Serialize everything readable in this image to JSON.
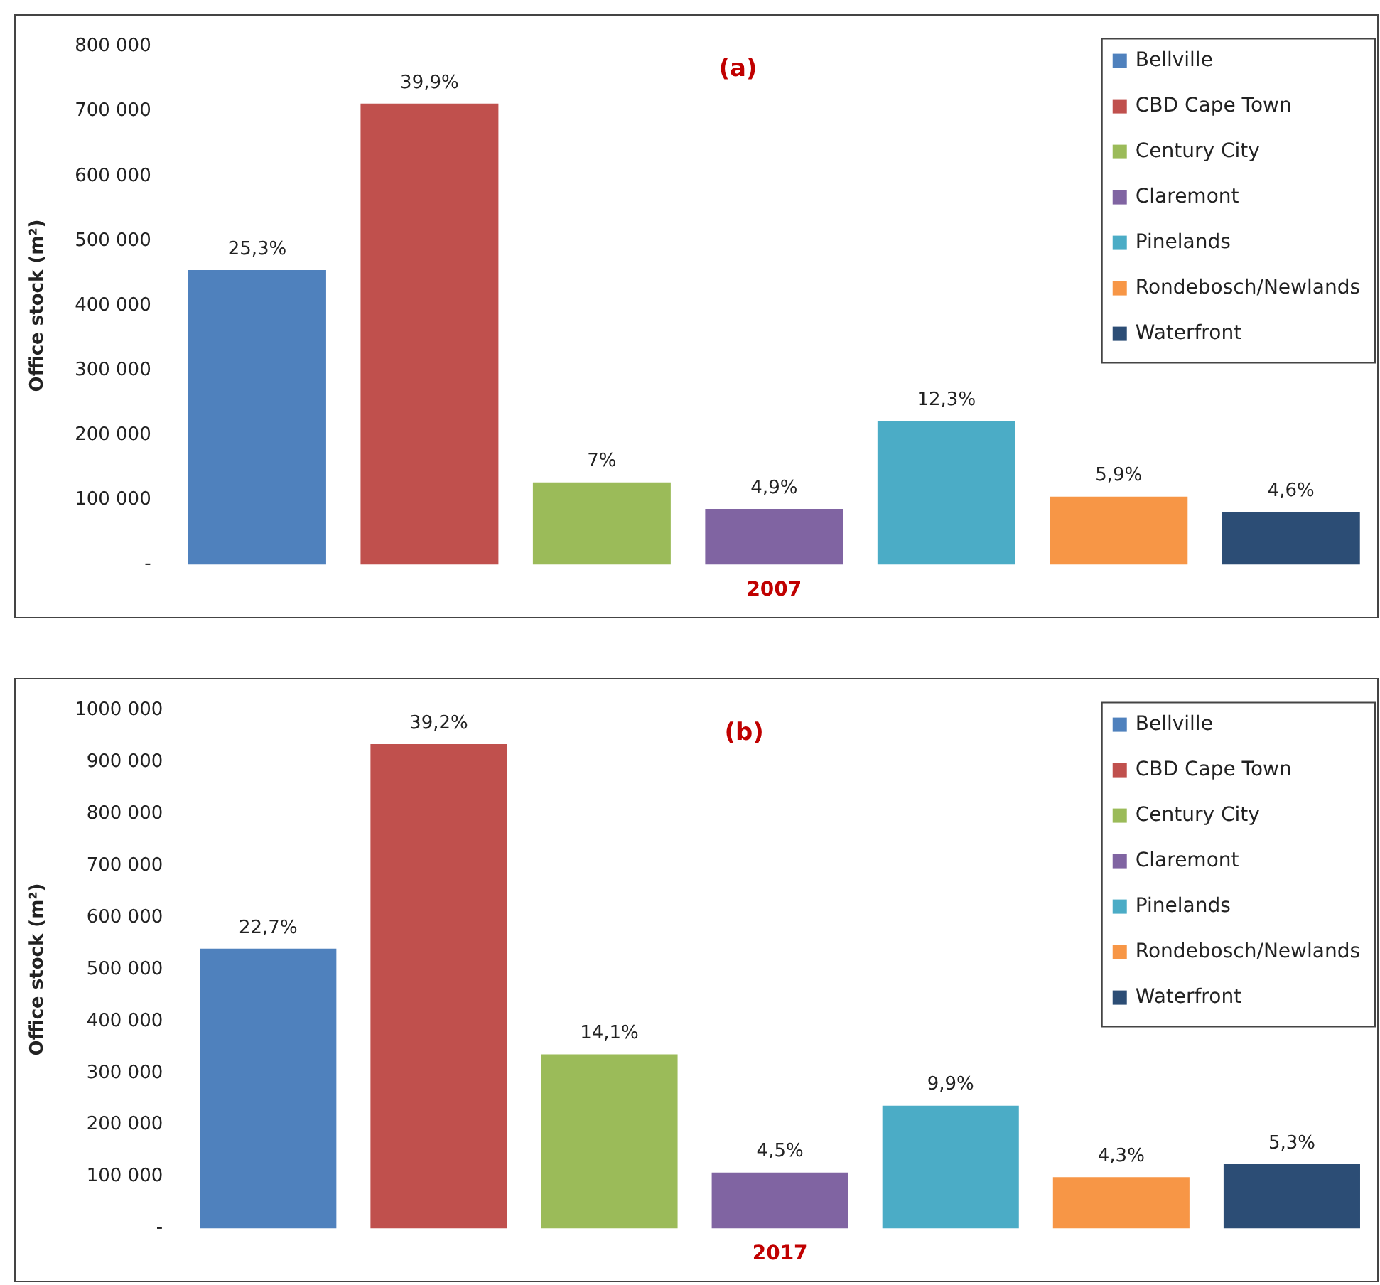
{
  "chart_data": [
    {
      "type": "bar",
      "title": "(a)",
      "ylabel": "Office stock (m²)",
      "xlabel": "2007",
      "categories": [
        null
      ],
      "legend": "top right",
      "grid": false,
      "ylim": [
        0,
        800000
      ],
      "yticks": [
        {
          "value": 0,
          "label": "-"
        },
        {
          "value": 100000,
          "label": "100 000"
        },
        {
          "value": 200000,
          "label": "200 000"
        },
        {
          "value": 300000,
          "label": "300 000"
        },
        {
          "value": 400000,
          "label": "400 000"
        },
        {
          "value": 500000,
          "label": "500 000"
        },
        {
          "value": 600000,
          "label": "600 000"
        },
        {
          "value": 700000,
          "label": "700 000"
        },
        {
          "value": 800000,
          "label": "800 000"
        }
      ],
      "series": [
        {
          "name": "Bellville",
          "color": "#4f81bd",
          "values": [
            455000
          ]
        },
        {
          "name": "CBD Cape Town",
          "color": "#c0504d",
          "values": [
            712000
          ]
        },
        {
          "name": "Century City",
          "color": "#9bbb59",
          "values": [
            127000
          ]
        },
        {
          "name": "Claremont",
          "color": "#8064a2",
          "values": [
            86000
          ]
        },
        {
          "name": "Pinelands",
          "color": "#4bacc6",
          "values": [
            222000
          ]
        },
        {
          "name": "Rondebosch/Newlands",
          "color": "#f79646",
          "values": [
            105000
          ]
        },
        {
          "name": "Waterfront",
          "color": "#2c4d75",
          "values": [
            81000
          ]
        }
      ],
      "annotations": [
        {
          "text": "25,3%",
          "y": 455000
        },
        {
          "text": "39,9%",
          "y": 712000
        },
        {
          "text": "7%",
          "y": 127000
        },
        {
          "text": "4,9%",
          "y": 86000
        },
        {
          "text": "12,3%",
          "y": 222000
        },
        {
          "text": "5,9%",
          "y": 105000
        },
        {
          "text": "4,6%",
          "y": 81000
        }
      ]
    },
    {
      "type": "bar",
      "title": "(b)",
      "ylabel": "Office stock (m²)",
      "xlabel": "2017",
      "categories": [
        null
      ],
      "legend": "top right",
      "grid": false,
      "ylim": [
        0,
        1000000
      ],
      "yticks": [
        {
          "value": 0,
          "label": "-"
        },
        {
          "value": 100000,
          "label": "100 000"
        },
        {
          "value": 200000,
          "label": "200 000"
        },
        {
          "value": 300000,
          "label": "300 000"
        },
        {
          "value": 400000,
          "label": "400 000"
        },
        {
          "value": 500000,
          "label": "500 000"
        },
        {
          "value": 600000,
          "label": "600 000"
        },
        {
          "value": 700000,
          "label": "700 000"
        },
        {
          "value": 800000,
          "label": "800 000"
        },
        {
          "value": 900000,
          "label": "900 000"
        },
        {
          "value": 1000000,
          "label": "1000 000"
        }
      ],
      "series": [
        {
          "name": "Bellville",
          "color": "#4f81bd",
          "values": [
            540000
          ]
        },
        {
          "name": "CBD Cape Town",
          "color": "#c0504d",
          "values": [
            935000
          ]
        },
        {
          "name": "Century City",
          "color": "#9bbb59",
          "values": [
            336000
          ]
        },
        {
          "name": "Claremont",
          "color": "#8064a2",
          "values": [
            108000
          ]
        },
        {
          "name": "Pinelands",
          "color": "#4bacc6",
          "values": [
            237000
          ]
        },
        {
          "name": "Rondebosch/Newlands",
          "color": "#f79646",
          "values": [
            99000
          ]
        },
        {
          "name": "Waterfront",
          "color": "#2c4d75",
          "values": [
            124000
          ]
        }
      ],
      "annotations": [
        {
          "text": "22,7%",
          "y": 540000
        },
        {
          "text": "39,2%",
          "y": 935000
        },
        {
          "text": "14,1%",
          "y": 336000
        },
        {
          "text": "4,5%",
          "y": 108000
        },
        {
          "text": "9,9%",
          "y": 237000
        },
        {
          "text": "4,3%",
          "y": 99000
        },
        {
          "text": "5,3%",
          "y": 124000
        }
      ]
    }
  ]
}
